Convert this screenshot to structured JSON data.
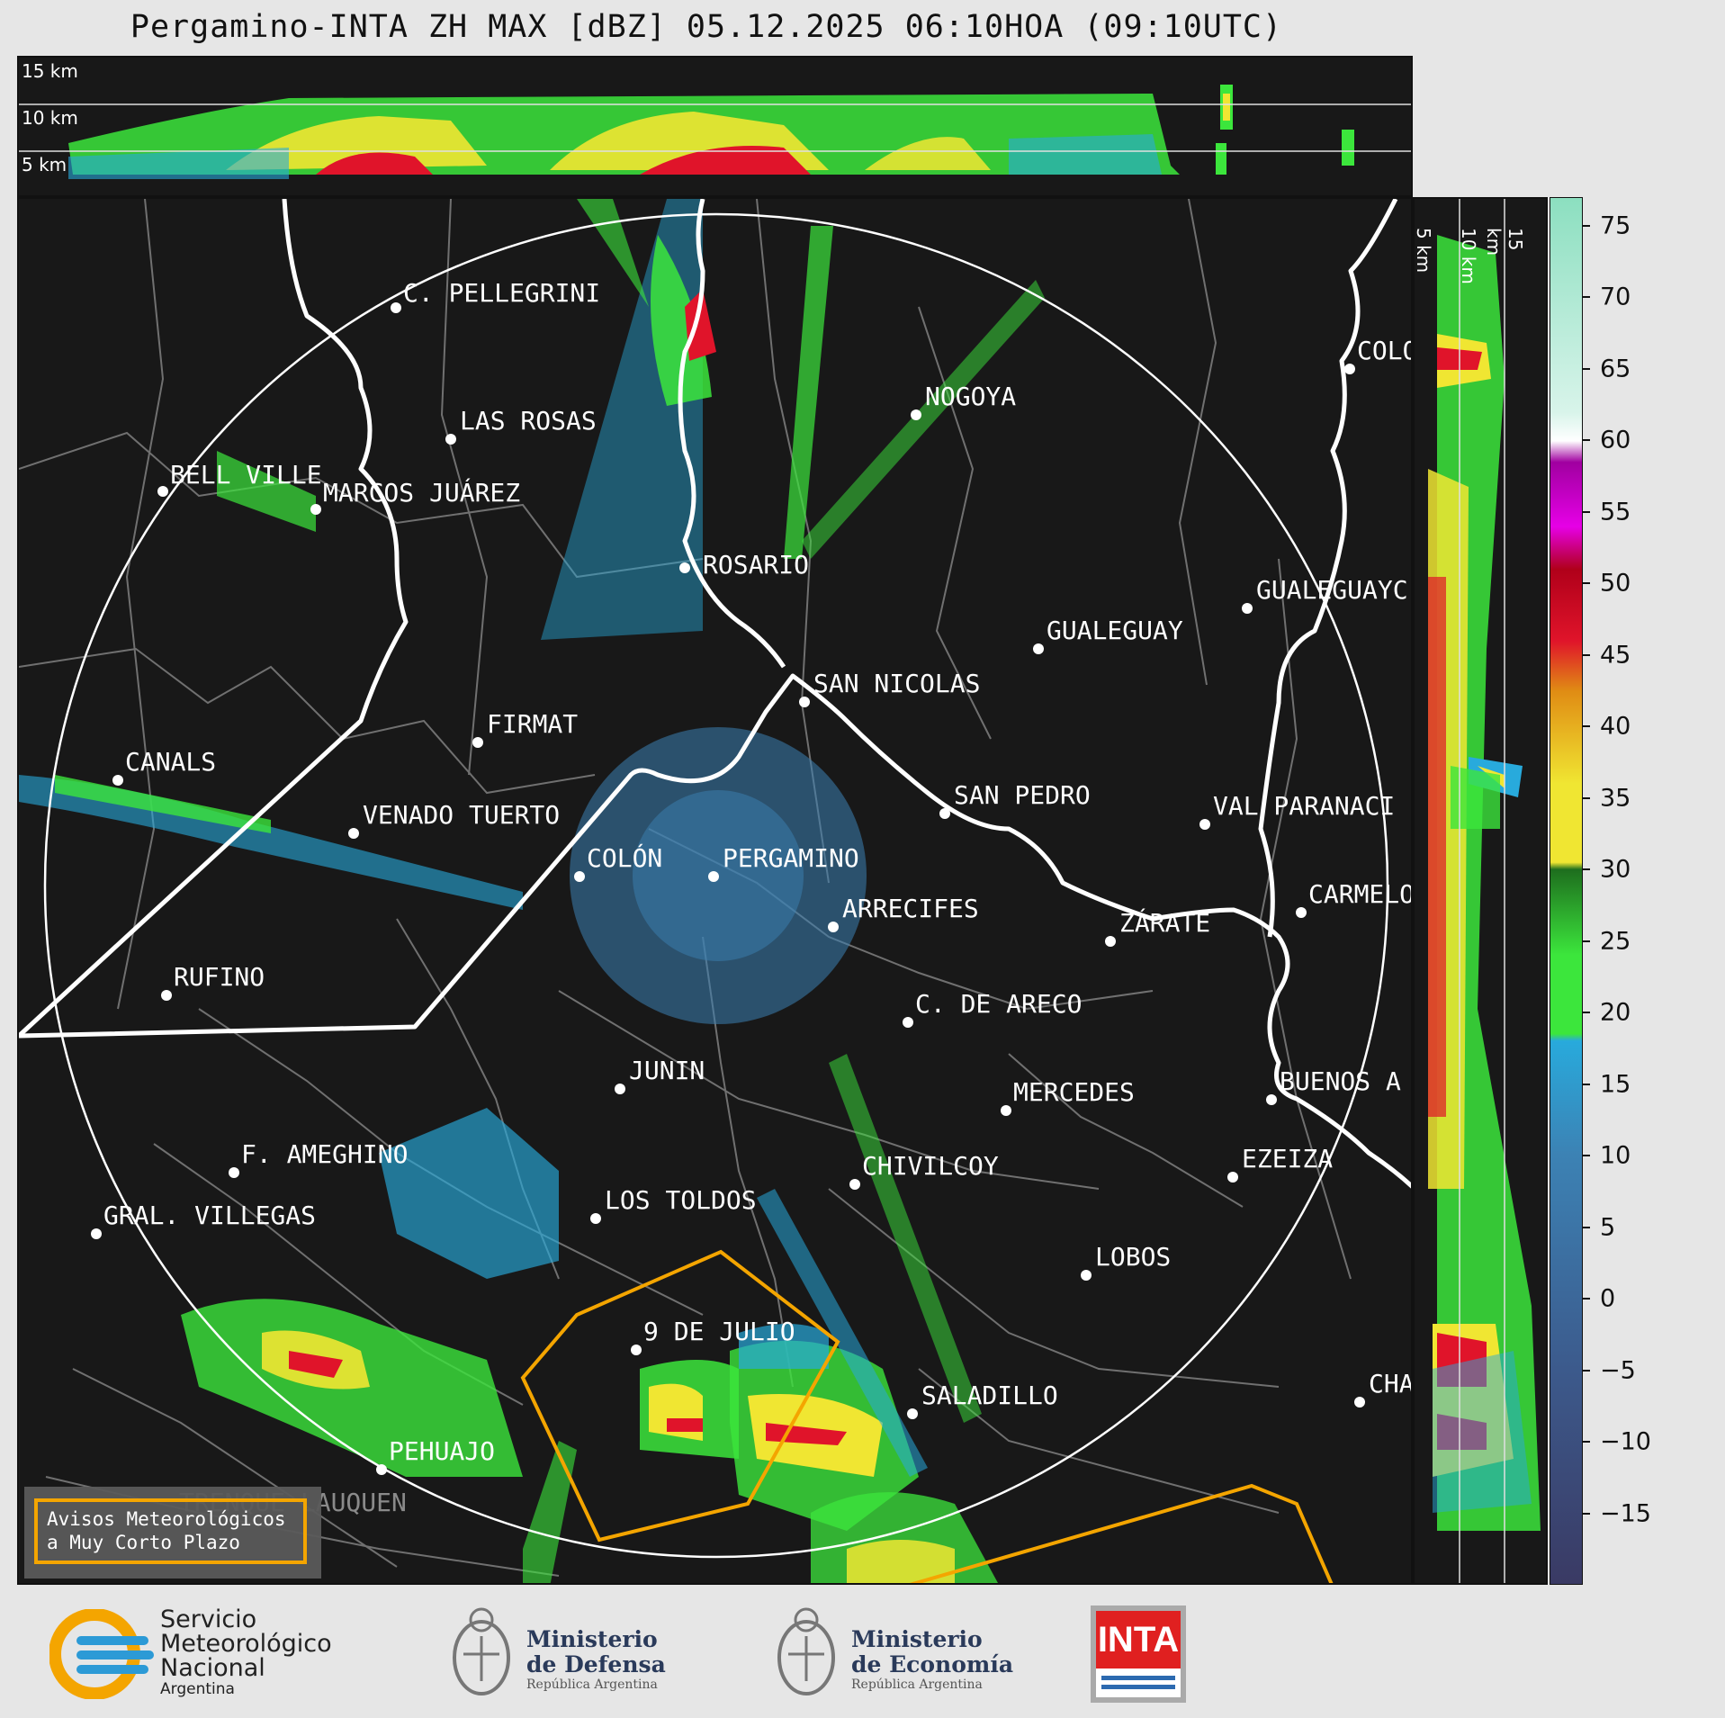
{
  "title": "Pergamino-INTA ZH MAX [dBZ] 05.12.2025 06:10HOA (09:10UTC)",
  "top_section": {
    "labels": [
      "15 km",
      "10 km",
      "5 km"
    ]
  },
  "side_section": {
    "labels": [
      "5 km",
      "10 km",
      "15 km"
    ]
  },
  "colorbar": {
    "unit": "dBZ",
    "ticks": [
      "75",
      "70",
      "65",
      "60",
      "55",
      "50",
      "45",
      "40",
      "35",
      "30",
      "25",
      "20",
      "15",
      "10",
      "5",
      "0",
      "−5",
      "−10",
      "−15"
    ],
    "range": [
      -20,
      77
    ],
    "colors": {
      "teal": "#8cdfc0",
      "white": "#ffffff",
      "purple": "#a000a0",
      "magenta": "#e600e6",
      "dark_red": "#b0001a",
      "red": "#e0142a",
      "orange": "#e08c14",
      "yellow": "#f0e632",
      "dark_green": "#1e6e1e",
      "green": "#3ce63c",
      "cyan": "#28aadc",
      "blue": "#3c82b4",
      "navy": "#3a3a64"
    }
  },
  "cities": [
    {
      "name": "C. PELLEGRINI"
    },
    {
      "name": "LAS ROSAS"
    },
    {
      "name": "BELL VILLE"
    },
    {
      "name": "MARCOS JUÁREZ"
    },
    {
      "name": "NOGOYA"
    },
    {
      "name": "ROSARIO"
    },
    {
      "name": "GUALEGUAY"
    },
    {
      "name": "GUALEGUAYC"
    },
    {
      "name": "COLO"
    },
    {
      "name": "SAN NICOLAS"
    },
    {
      "name": "FIRMAT"
    },
    {
      "name": "CANALS"
    },
    {
      "name": "VENADO TUERTO"
    },
    {
      "name": "SAN PEDRO"
    },
    {
      "name": "VAL PARANACI"
    },
    {
      "name": "COLÓN"
    },
    {
      "name": "PERGAMINO"
    },
    {
      "name": "CARMELO"
    },
    {
      "name": "ARRECIFES"
    },
    {
      "name": "ZÁRATE"
    },
    {
      "name": "RUFINO"
    },
    {
      "name": "C. DE ARECO"
    },
    {
      "name": "JUNIN"
    },
    {
      "name": "MERCEDES"
    },
    {
      "name": "BUENOS A"
    },
    {
      "name": "F. AMEGHINO"
    },
    {
      "name": "EZEIZA"
    },
    {
      "name": "CHIVILCOY"
    },
    {
      "name": "GRAL. VILLEGAS"
    },
    {
      "name": "LOS TOLDOS"
    },
    {
      "name": "LOBOS"
    },
    {
      "name": "9 DE JULIO"
    },
    {
      "name": "SALADILLO"
    },
    {
      "name": "CHA"
    },
    {
      "name": "PEHUAJO"
    },
    {
      "name": "TRENQUE LAUQUEN"
    }
  ],
  "legend": {
    "line1": "Avisos Meteorológicos",
    "line2": "a Muy Corto Plazo"
  },
  "logos": {
    "smn": [
      "Servicio",
      "Meteorológico",
      "Nacional",
      "Argentina"
    ],
    "defensa": [
      "Ministerio",
      "de Defensa",
      "República Argentina"
    ],
    "economia": [
      "Ministerio",
      "de Economía",
      "República Argentina"
    ],
    "inta": "INTA"
  }
}
